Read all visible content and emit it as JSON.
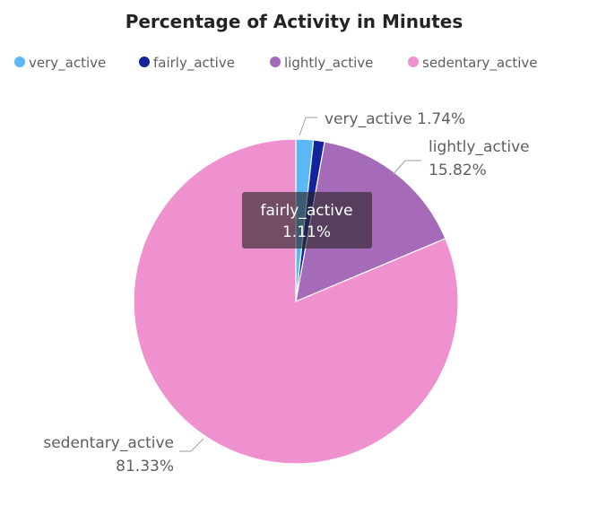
{
  "chart_data": {
    "type": "pie",
    "title": "Percentage of Activity in Minutes",
    "legend_position": "top",
    "series": [
      {
        "name": "very_active",
        "value": 1.74,
        "label": "1.74%",
        "color": "#5CB8F5"
      },
      {
        "name": "fairly_active",
        "value": 1.11,
        "label": "1.11%",
        "color": "#12239E"
      },
      {
        "name": "lightly_active",
        "value": 15.82,
        "label": "15.82%",
        "color": "#A66BB8"
      },
      {
        "name": "sedentary_active",
        "value": 81.33,
        "label": "81.33%",
        "color": "#EE91CE"
      }
    ],
    "tooltip": {
      "name": "fairly_active",
      "value": "1.11%"
    }
  }
}
